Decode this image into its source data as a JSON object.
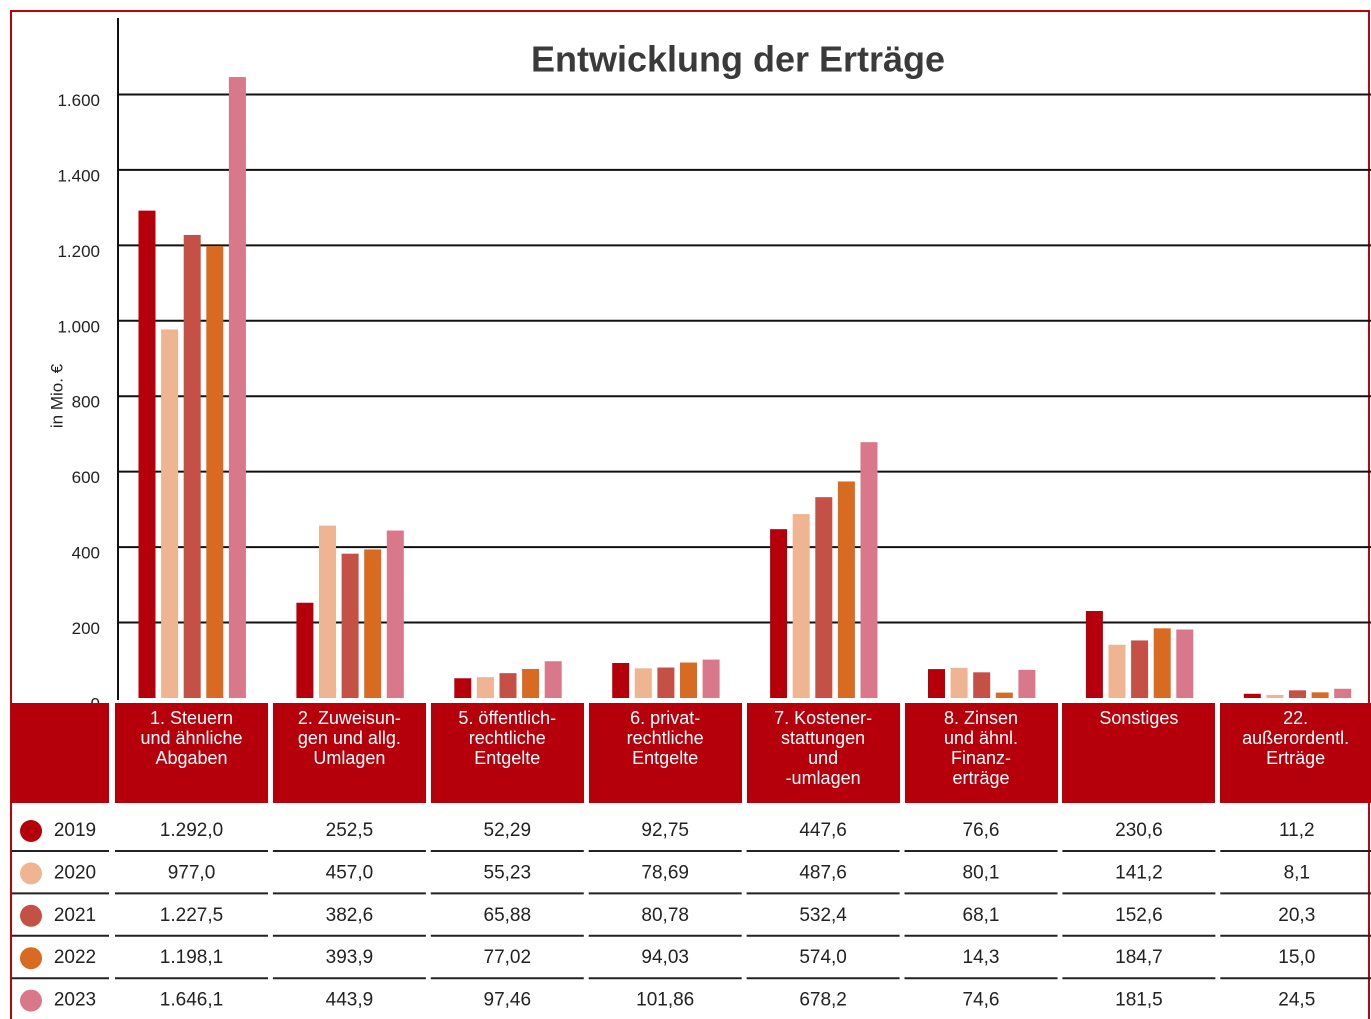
{
  "chart_data": {
    "type": "bar",
    "title": "Entwicklung der Erträge",
    "y_label": "in Mio. €",
    "categories": [
      "1. Steuern\nund ähnliche\nAbgaben",
      "2. Zuweisun-\ngen und allg.\nUmlagen",
      "5. öffentlich-\nrechtliche\nEntgelte",
      "6. privat-\nrechtliche\nEntgelte",
      "7. Kostener-\nstattungen\nund\n-umlagen",
      "8. Zinsen\nund ähnl.\nFinanz-\nerträge",
      "Sonstiges",
      "22.\naußerordentl.\nErträge"
    ],
    "series": [
      {
        "name": "2019",
        "color": "#b5000b",
        "values": [
          1292.0,
          252.5,
          52.29,
          92.75,
          447.6,
          76.6,
          230.6,
          11.2
        ],
        "value_labels": [
          "1.292,0",
          "252,5",
          "52,29",
          "92,75",
          "447,6",
          "76,6",
          "230,6",
          "11,2"
        ]
      },
      {
        "name": "2020",
        "color": "#efb592",
        "values": [
          977.0,
          457.0,
          55.23,
          78.69,
          487.6,
          80.1,
          141.2,
          8.1
        ],
        "value_labels": [
          "977,0",
          "457,0",
          "55,23",
          "78,69",
          "487,6",
          "80,1",
          "141,2",
          "8,1"
        ]
      },
      {
        "name": "2021",
        "color": "#c55146",
        "values": [
          1227.5,
          382.6,
          65.88,
          80.78,
          532.4,
          68.1,
          152.6,
          20.3
        ],
        "value_labels": [
          "1.227,5",
          "382,6",
          "65,88",
          "80,78",
          "532,4",
          "68,1",
          "152,6",
          "20,3"
        ]
      },
      {
        "name": "2022",
        "color": "#d96a22",
        "values": [
          1198.1,
          393.9,
          77.02,
          94.03,
          574.0,
          14.3,
          184.7,
          15.0
        ],
        "value_labels": [
          "1.198,1",
          "393,9",
          "77,02",
          "94,03",
          "574,0",
          "14,3",
          "184,7",
          "15,0"
        ]
      },
      {
        "name": "2023",
        "color": "#d9788a",
        "values": [
          1646.1,
          443.9,
          97.46,
          101.86,
          678.2,
          74.6,
          181.5,
          24.5
        ],
        "value_labels": [
          "1.646,1",
          "443,9",
          "97,46",
          "101,86",
          "678,2",
          "74,6",
          "181,5",
          "24,5"
        ]
      }
    ],
    "ylim": [
      0,
      1800
    ],
    "yticks": [
      0,
      200,
      400,
      600,
      800,
      {
        "value": 1000,
        "label": "1.000"
      },
      {
        "value": 1200,
        "label": "1.200"
      },
      {
        "value": 1400,
        "label": "1.400"
      },
      {
        "value": 1600,
        "label": "1.600"
      }
    ],
    "grid": true,
    "header_color": "#b5000b"
  }
}
